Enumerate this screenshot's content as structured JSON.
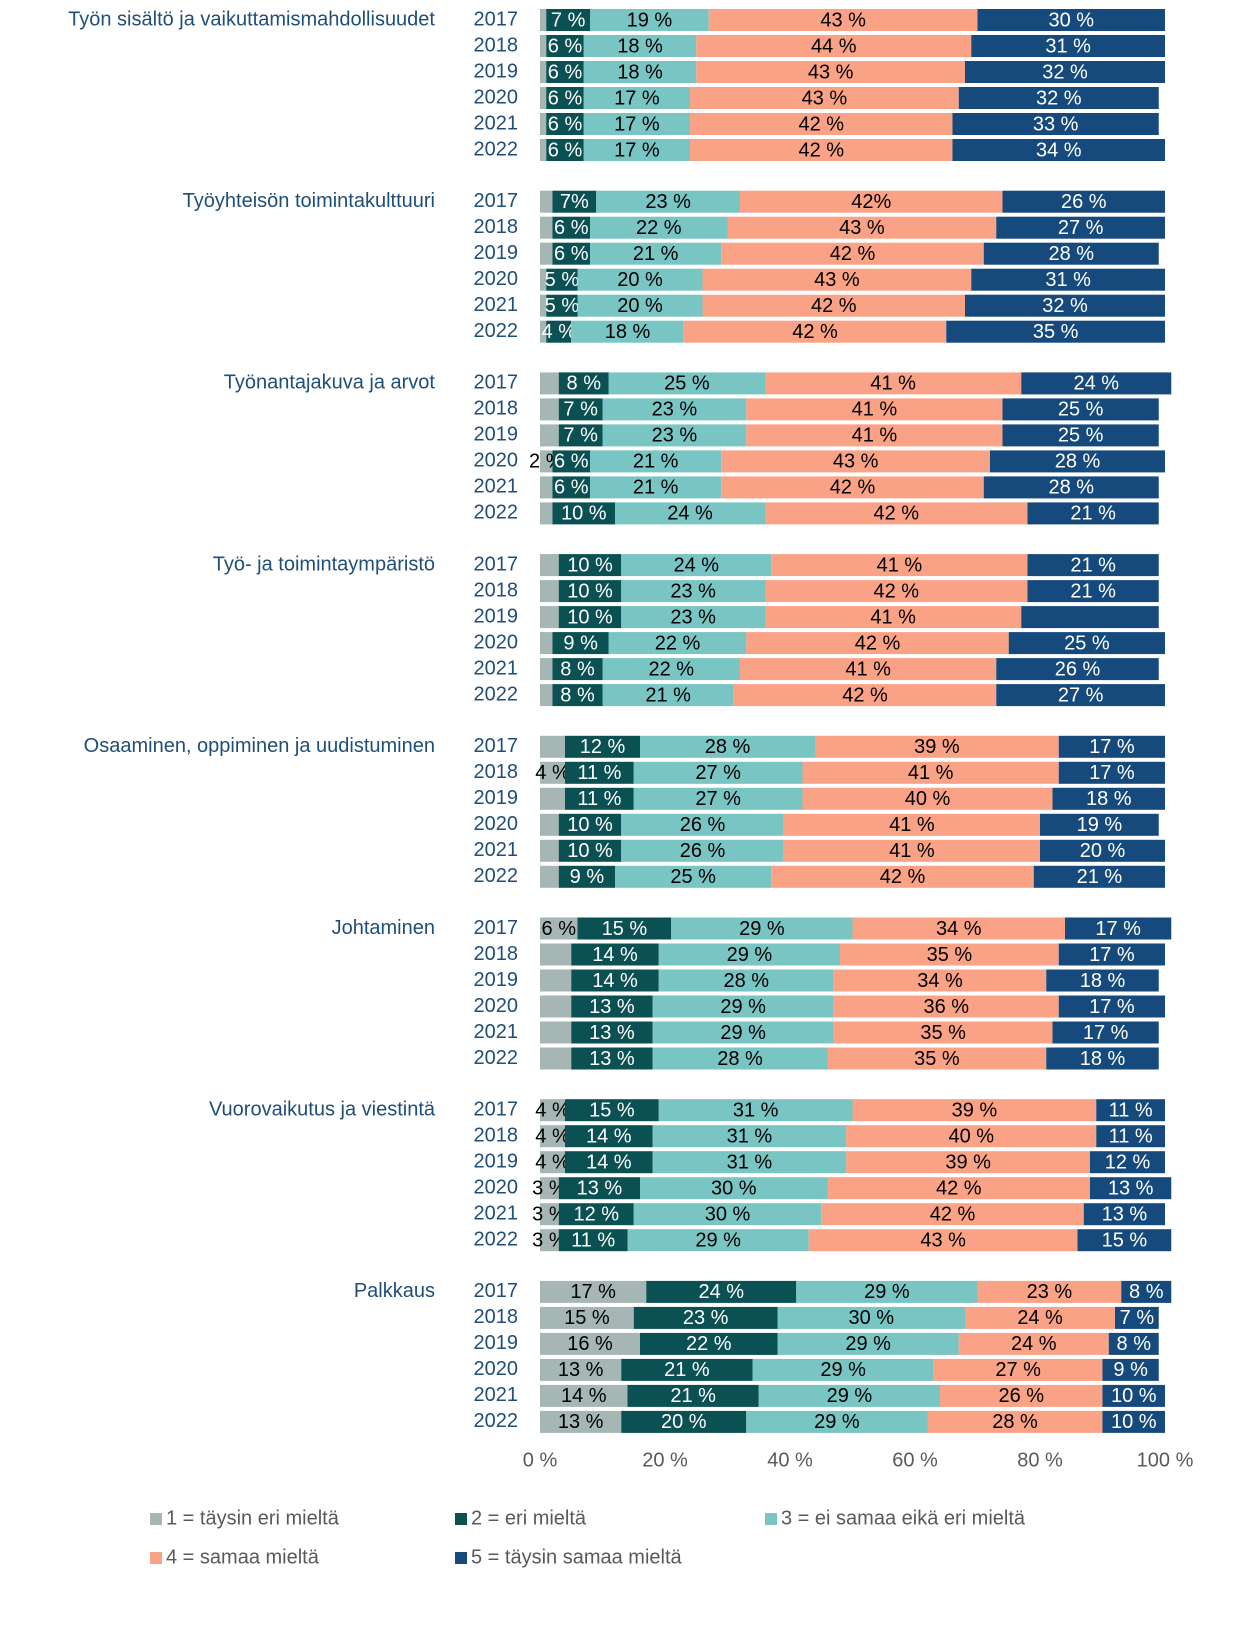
{
  "chart_data": {
    "type": "stacked-bar-horizontal",
    "groups": [
      "Työn sisältö ja vaikuttamismahdollisuudet",
      "Työyhteisön toimintakulttuuri",
      "Työnantajakuva ja arvot",
      "Työ- ja toimintaympäristö",
      "Osaaminen, oppiminen ja uudistuminen",
      "Johtaminen",
      "Vuorovaikutus ja viestintä",
      "Palkkaus"
    ],
    "categories": [
      "2017",
      "2018",
      "2019",
      "2020",
      "2021",
      "2022",
      "2017",
      "2018",
      "2019",
      "2020",
      "2021",
      "2022",
      "2017",
      "2018",
      "2019",
      "2020",
      "2021",
      "2022",
      "2017",
      "2018",
      "2019",
      "2020",
      "2021",
      "2022",
      "2017",
      "2018",
      "2019",
      "2020",
      "2021",
      "2022",
      "2017",
      "2018",
      "2019",
      "2020",
      "2021",
      "2022",
      "2017",
      "2018",
      "2019",
      "2020",
      "2021",
      "2022",
      "2017",
      "2018",
      "2019",
      "2020",
      "2021",
      "2022"
    ],
    "series": [
      {
        "name": "1 = täysin eri mieltä",
        "color": "#a6b6b4",
        "values": [
          1,
          1,
          1,
          1,
          1,
          1,
          2,
          2,
          2,
          1,
          1,
          1,
          3,
          3,
          3,
          2,
          2,
          2,
          3,
          3,
          3,
          2,
          2,
          2,
          4,
          4,
          4,
          3,
          3,
          3,
          6,
          5,
          5,
          5,
          5,
          5,
          4,
          4,
          4,
          3,
          3,
          3,
          17,
          15,
          16,
          13,
          14,
          13
        ],
        "value_labels": [
          null,
          null,
          null,
          null,
          null,
          null,
          null,
          null,
          null,
          null,
          null,
          null,
          null,
          null,
          null,
          "2 %",
          null,
          null,
          null,
          null,
          null,
          null,
          null,
          null,
          null,
          "4 %",
          null,
          null,
          null,
          null,
          "6 %",
          null,
          null,
          null,
          null,
          null,
          "4 %",
          "4 %",
          "4 %",
          "3 %",
          "3 %",
          "3 %",
          "17 %",
          "15 %",
          "16 %",
          "13 %",
          "14 %",
          "13 %"
        ]
      },
      {
        "name": "2 = eri mieltä",
        "color": "#0b5052",
        "values": [
          7,
          6,
          6,
          6,
          6,
          6,
          7,
          6,
          6,
          5,
          5,
          4,
          8,
          7,
          7,
          6,
          6,
          10,
          10,
          10,
          10,
          9,
          8,
          8,
          12,
          11,
          11,
          10,
          10,
          9,
          15,
          14,
          14,
          13,
          13,
          13,
          15,
          14,
          14,
          13,
          12,
          11,
          24,
          23,
          22,
          21,
          21,
          20
        ],
        "value_labels": [
          "7 %",
          "6 %",
          "6 %",
          "6 %",
          "6 %",
          "6 %",
          "7%",
          "6 %",
          "6 %",
          "5 %",
          "5 %",
          "4 %",
          "8 %",
          "7 %",
          "7 %",
          "6 %",
          "6 %",
          "10 %",
          "10 %",
          "10 %",
          "10 %",
          "9 %",
          "8 %",
          "8 %",
          "12 %",
          "11 %",
          "11 %",
          "10 %",
          "10 %",
          "9 %",
          "15 %",
          "14 %",
          "14 %",
          "13 %",
          "13 %",
          "13 %",
          "15 %",
          "14 %",
          "14 %",
          "13 %",
          "12 %",
          "11 %",
          "24 %",
          "23 %",
          "22 %",
          "21 %",
          "21 %",
          "20 %"
        ]
      },
      {
        "name": "3 = ei samaa eikä eri mieltä",
        "color": "#78c5c3",
        "values": [
          19,
          18,
          18,
          17,
          17,
          17,
          23,
          22,
          21,
          20,
          20,
          18,
          25,
          23,
          23,
          21,
          21,
          24,
          24,
          23,
          23,
          22,
          22,
          21,
          28,
          27,
          27,
          26,
          26,
          25,
          29,
          29,
          28,
          29,
          29,
          28,
          31,
          31,
          31,
          30,
          30,
          29,
          29,
          30,
          29,
          29,
          29,
          29
        ],
        "value_labels": [
          "19 %",
          "18 %",
          "18 %",
          "17 %",
          "17 %",
          "17 %",
          "23 %",
          "22 %",
          "21 %",
          "20 %",
          "20 %",
          "18 %",
          "25 %",
          "23 %",
          "23 %",
          "21 %",
          "21 %",
          "24 %",
          "24 %",
          "23 %",
          "23 %",
          "22 %",
          "22 %",
          "21 %",
          "28 %",
          "27 %",
          "27 %",
          "26 %",
          "26 %",
          "25 %",
          "29 %",
          "29 %",
          "28 %",
          "29 %",
          "29 %",
          "28 %",
          "31 %",
          "31 %",
          "31 %",
          "30 %",
          "30 %",
          "29 %",
          "29 %",
          "30 %",
          "29 %",
          "29 %",
          "29 %",
          "29 %"
        ]
      },
      {
        "name": "4 = samaa mieltä",
        "color": "#f9a285",
        "values": [
          43,
          44,
          43,
          43,
          42,
          42,
          42,
          43,
          42,
          43,
          42,
          42,
          41,
          41,
          41,
          43,
          42,
          42,
          41,
          42,
          41,
          42,
          41,
          42,
          39,
          41,
          40,
          41,
          41,
          42,
          34,
          35,
          34,
          36,
          35,
          35,
          39,
          40,
          39,
          42,
          42,
          43,
          23,
          24,
          24,
          27,
          26,
          28
        ],
        "value_labels": [
          "43 %",
          "44 %",
          "43 %",
          "43 %",
          "42 %",
          "42 %",
          "42%",
          "43 %",
          "42 %",
          "43 %",
          "42 %",
          "42 %",
          "41 %",
          "41 %",
          "41 %",
          "43 %",
          "42 %",
          "42 %",
          "41 %",
          "42 %",
          "41 %",
          "42 %",
          "41 %",
          "42 %",
          "39 %",
          "41 %",
          "40 %",
          "41 %",
          "41 %",
          "42 %",
          "34 %",
          "35 %",
          "34 %",
          "36 %",
          "35 %",
          "35 %",
          "39 %",
          "40 %",
          "39 %",
          "42 %",
          "42 %",
          "43 %",
          "23 %",
          "24 %",
          "24 %",
          "27 %",
          "26 %",
          "28 %"
        ]
      },
      {
        "name": "5 = täysin samaa mieltä",
        "color": "#174a7c",
        "values": [
          30,
          31,
          32,
          32,
          33,
          34,
          26,
          27,
          28,
          31,
          32,
          35,
          24,
          25,
          25,
          28,
          28,
          21,
          21,
          21,
          22,
          25,
          26,
          27,
          17,
          17,
          18,
          19,
          20,
          21,
          17,
          17,
          18,
          17,
          17,
          18,
          11,
          11,
          12,
          13,
          13,
          15,
          8,
          7,
          8,
          9,
          10,
          10
        ],
        "value_labels": [
          "30 %",
          "31 %",
          "32 %",
          "32 %",
          "33 %",
          "34 %",
          "26 %",
          "27 %",
          "28 %",
          "31 %",
          "32 %",
          "35 %",
          "24 %",
          "25 %",
          "25 %",
          "28 %",
          "28 %",
          "21 %",
          "21 %",
          "21 %",
          null,
          "25 %",
          "26 %",
          "27 %",
          "17 %",
          "17 %",
          "18 %",
          "19 %",
          "20 %",
          "21 %",
          "17 %",
          "17 %",
          "18 %",
          "17 %",
          "17 %",
          "18 %",
          "11 %",
          "11 %",
          "12 %",
          "13 %",
          "13 %",
          "15 %",
          "8 %",
          "7 %",
          "8 %",
          "9 %",
          "10 %",
          "10 %"
        ]
      }
    ],
    "xlim": [
      0,
      100
    ],
    "xticks": [
      {
        "value": 0,
        "label": "0 %"
      },
      {
        "value": 20,
        "label": "20 %"
      },
      {
        "value": 40,
        "label": "40 %"
      },
      {
        "value": 60,
        "label": "60 %"
      },
      {
        "value": 80,
        "label": "80 %"
      },
      {
        "value": 100,
        "label": "100 %"
      }
    ],
    "grid": false,
    "legend": "bottom"
  }
}
